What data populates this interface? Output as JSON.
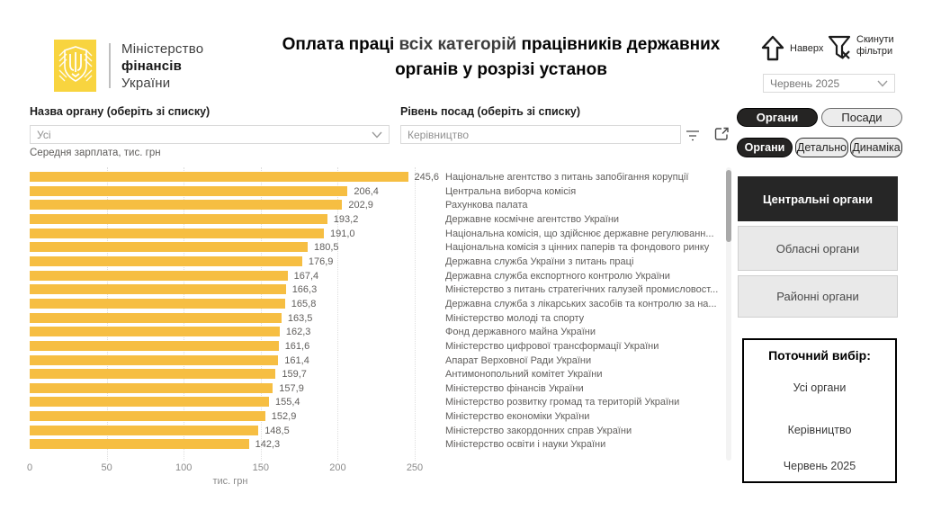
{
  "logo": {
    "line1": "Міністерство",
    "line2": "фінансів",
    "line3": "України"
  },
  "title": {
    "part1": "Оплата праці ",
    "part2": "всіх категорій",
    "part3": " працівників державних органів у розрізі установ"
  },
  "toolbar": {
    "nav_up_label": "Наверх",
    "reset_filters_label": "Скинути фільтри",
    "month_dropdown_value": "Червень 2025"
  },
  "filters": {
    "org_label": "Назва органу (оберіть зі списку)",
    "org_value": "Усі",
    "level_label": "Рівень посад (оберіть зі списку)",
    "level_value": "Керівництво"
  },
  "chart_data": {
    "type": "bar",
    "orientation": "horizontal",
    "title": "Середня зарплата, тис. грн",
    "xlabel": "тис. грн",
    "xlim": [
      0,
      250
    ],
    "x_ticks": [
      0,
      50,
      100,
      150,
      200,
      250
    ],
    "grid": "vertical-dotted",
    "bar_color": "#F6BE42",
    "categories": [
      "Національне агентство з питань запобігання корупції",
      "Центральна виборча комісія",
      "Рахункова палата",
      "Державне космічне агентство України",
      "Національна комісія, що здійснює державне регулюванн...",
      "Національна комісія з цінних паперів та фондового ринку",
      "Державна служба України з питань праці",
      "Державна служба експортного контролю України",
      "Міністерство з питань стратегічних галузей промисловост...",
      "Державна служба з лікарських засобів та контролю за на...",
      "Міністерство молоді та спорту",
      "Фонд державного майна України",
      "Міністерство цифрової трансформації України",
      "Апарат Верховної Ради України",
      "Антимонопольний комітет України",
      "Міністерство фінансів України",
      "Міністерство розвитку громад та територій України",
      "Міністерство економіки України",
      "Міністерство закордонних справ України",
      "Міністерство освіти і науки України"
    ],
    "values": [
      245.6,
      206.4,
      202.9,
      193.2,
      191.0,
      180.5,
      176.9,
      167.4,
      166.3,
      165.8,
      163.5,
      162.3,
      161.6,
      161.4,
      159.7,
      157.9,
      155.4,
      152.9,
      148.5,
      142.3
    ],
    "value_labels": [
      "245,6",
      "206,4",
      "202,9",
      "193,2",
      "191,0",
      "180,5",
      "176,9",
      "167,4",
      "166,3",
      "165,8",
      "163,5",
      "162,3",
      "161,6",
      "161,4",
      "159,7",
      "157,9",
      "155,4",
      "152,9",
      "148,5",
      "142,3"
    ]
  },
  "panel": {
    "view_tabs": [
      {
        "label": "Органи",
        "active": true
      },
      {
        "label": "Посади",
        "active": false
      }
    ],
    "mode_tabs": [
      {
        "label": "Органи",
        "active": true
      },
      {
        "label": "Детально",
        "active": false
      },
      {
        "label": "Динаміка",
        "active": false
      }
    ],
    "level_buttons": [
      {
        "label": "Центральні органи",
        "active": true
      },
      {
        "label": "Обласні органи",
        "active": false
      },
      {
        "label": "Районні органи",
        "active": false
      }
    ],
    "current_selection": {
      "title": "Поточний вибір:",
      "items": [
        "Усі органи",
        "Керівництво",
        "Червень 2025"
      ]
    }
  },
  "colors": {
    "accent_yellow": "#F6BE42",
    "logo_yellow": "#F8D43F",
    "active_black": "#252423",
    "inactive_gray": "#ECECEC"
  }
}
